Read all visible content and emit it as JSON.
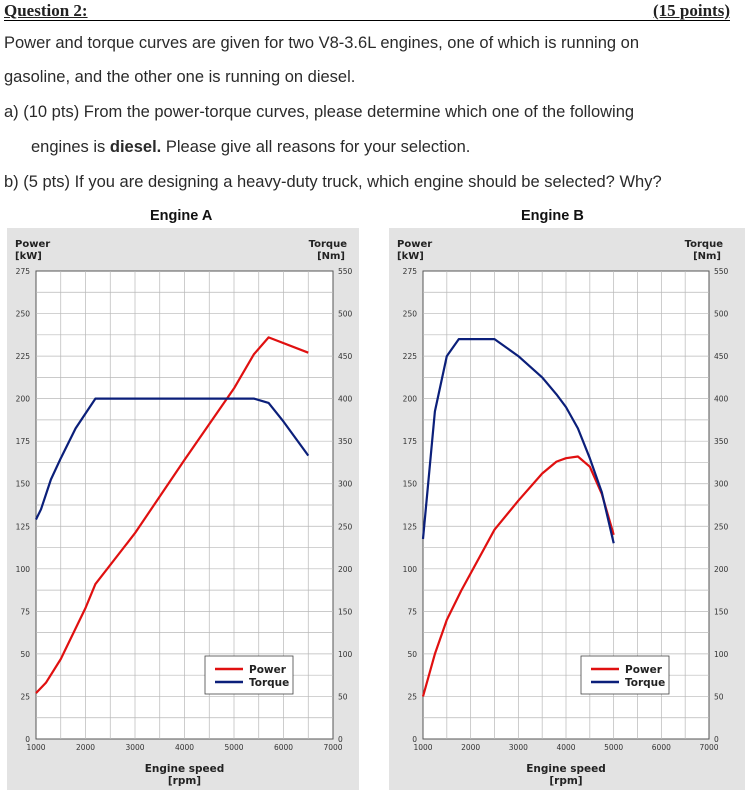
{
  "question": {
    "heading": "Question 2:",
    "points": "(15 points)",
    "intro_line1": "Power and torque curves are given for two V8-3.6L engines, one of which is running on",
    "intro_line2": "gasoline, and the other one is running on diesel.",
    "a_prefix": "a)  (10 pts) From the power-torque curves, please determine which one of the following",
    "a_line2_pre": "engines is ",
    "a_line2_bold": "diesel.",
    "a_line2_post": " Please give all reasons for your selection.",
    "b_text": "b)  (5 pts) If you are designing a heavy-duty truck, which engine should be selected? Why?"
  },
  "chart_data": [
    {
      "type": "line",
      "title": "Engine A",
      "xlabel_line1": "Engine speed",
      "xlabel_line2": "[rpm]",
      "ylabel_left_line1": "Power",
      "ylabel_left_line2": "[kW]",
      "ylabel_right_line1": "Torque",
      "ylabel_right_line2": "[Nm]",
      "xlim": [
        1000,
        7000
      ],
      "x_ticks": [
        1000,
        2000,
        3000,
        4000,
        5000,
        6000,
        7000
      ],
      "ylim_left": [
        0,
        275
      ],
      "y_ticks_left": [
        0,
        25,
        50,
        75,
        100,
        125,
        150,
        175,
        200,
        225,
        250,
        275
      ],
      "ylim_right": [
        0,
        550
      ],
      "y_ticks_right": [
        0,
        50,
        100,
        150,
        200,
        250,
        300,
        350,
        400,
        450,
        500,
        550
      ],
      "grid": true,
      "legend": "bottom-right",
      "series": [
        {
          "name": "Power",
          "axis": "left",
          "color": "#e01010",
          "x": [
            1000,
            1200,
            1500,
            2000,
            2200,
            3000,
            4000,
            5000,
            5400,
            5700,
            6500
          ],
          "y": [
            27,
            33,
            47,
            77,
            91,
            121,
            164,
            206,
            226,
            236,
            227
          ]
        },
        {
          "name": "Torque",
          "axis": "right",
          "color": "#0b1f7a",
          "x": [
            1000,
            1100,
            1300,
            1500,
            1800,
            2200,
            3000,
            4000,
            5000,
            5400,
            5700,
            6000,
            6500
          ],
          "y": [
            258,
            270,
            305,
            330,
            365,
            400,
            400,
            400,
            400,
            400,
            395,
            373,
            333
          ]
        }
      ]
    },
    {
      "type": "line",
      "title": "Engine B",
      "xlabel_line1": "Engine speed",
      "xlabel_line2": "[rpm]",
      "ylabel_left_line1": "Power",
      "ylabel_left_line2": "[kW]",
      "ylabel_right_line1": "Torque",
      "ylabel_right_line2": "[Nm]",
      "xlim": [
        1000,
        7000
      ],
      "x_ticks": [
        1000,
        2000,
        3000,
        4000,
        5000,
        6000,
        7000
      ],
      "ylim_left": [
        0,
        275
      ],
      "y_ticks_left": [
        0,
        25,
        50,
        75,
        100,
        125,
        150,
        175,
        200,
        225,
        250,
        275
      ],
      "ylim_right": [
        0,
        550
      ],
      "y_ticks_right": [
        0,
        50,
        100,
        150,
        200,
        250,
        300,
        350,
        400,
        450,
        500,
        550
      ],
      "grid": true,
      "legend": "bottom-right",
      "series": [
        {
          "name": "Power",
          "axis": "left",
          "color": "#e01010",
          "x": [
            1000,
            1250,
            1500,
            1800,
            2500,
            3000,
            3500,
            3800,
            4000,
            4250,
            4500,
            4750,
            5000
          ],
          "y": [
            25,
            50,
            70,
            87,
            123,
            140,
            156,
            163,
            165,
            166,
            160,
            144,
            120
          ]
        },
        {
          "name": "Torque",
          "axis": "right",
          "color": "#0b1f7a",
          "x": [
            1000,
            1250,
            1500,
            1750,
            2500,
            3000,
            3500,
            3800,
            4000,
            4250,
            4500,
            4750,
            5000
          ],
          "y": [
            235,
            385,
            450,
            470,
            470,
            450,
            425,
            405,
            390,
            365,
            330,
            290,
            230
          ]
        }
      ]
    }
  ]
}
